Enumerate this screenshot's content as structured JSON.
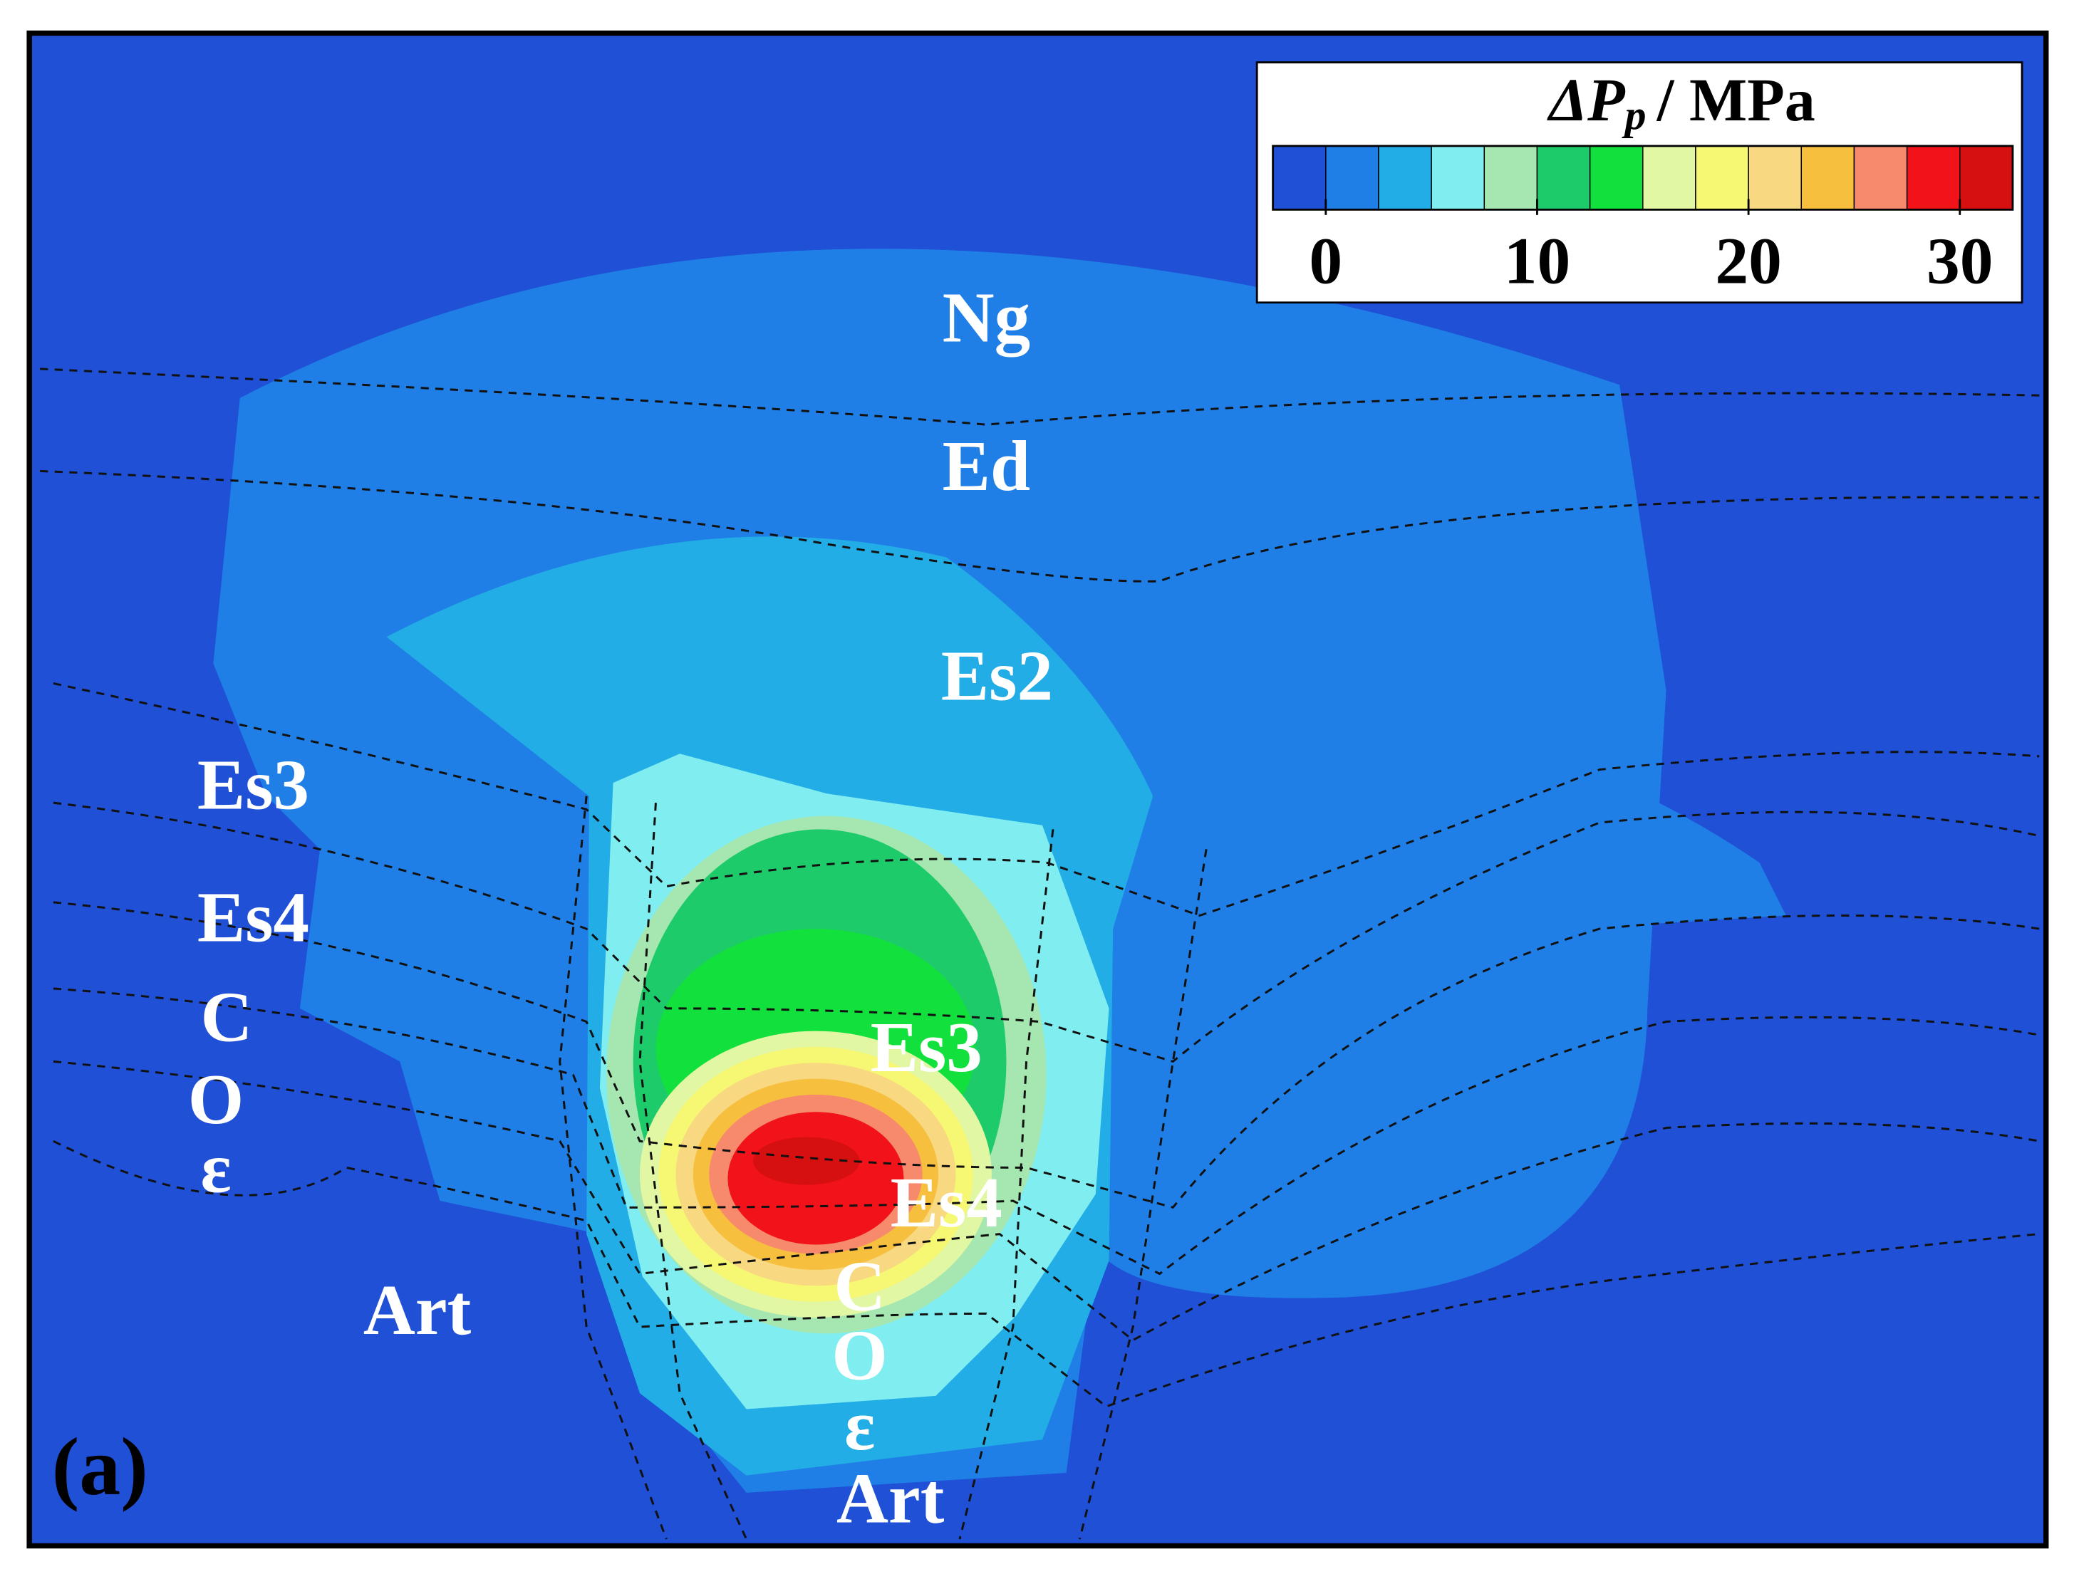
{
  "chart_data": {
    "type": "contour",
    "panel_label": "(a)",
    "colorbar": {
      "title": {
        "symbol": "ΔP",
        "subscript": "p",
        "unit": "/ MPa"
      },
      "levels": [
        -2.5,
        0,
        2.5,
        5,
        7.5,
        10,
        12.5,
        15,
        17.5,
        20,
        22.5,
        25,
        27.5,
        30,
        32.5
      ],
      "colors": [
        "#1f50d6",
        "#1f7fe6",
        "#22ade6",
        "#80eef0",
        "#a6e6b0",
        "#1ecb6a",
        "#12e03c",
        "#e2f7a4",
        "#f6f772",
        "#f8d880",
        "#f6bf3e",
        "#f7896c",
        "#f2131a",
        "#d60f10"
      ],
      "xlim": [
        -2.5,
        32.5
      ],
      "xticks": [
        0,
        10,
        20,
        30
      ]
    },
    "annotations": [
      {
        "text": "Ng"
      },
      {
        "text": "Ed"
      },
      {
        "text": "Es2"
      },
      {
        "text": "Es3"
      },
      {
        "text": "Es4"
      },
      {
        "text": "C"
      },
      {
        "text": "O"
      },
      {
        "text": "ε"
      },
      {
        "text": "Art"
      },
      {
        "text": "Es3"
      },
      {
        "text": "Es4"
      },
      {
        "text": "C"
      },
      {
        "text": "O"
      },
      {
        "text": "ε"
      },
      {
        "text": "Art"
      }
    ]
  }
}
